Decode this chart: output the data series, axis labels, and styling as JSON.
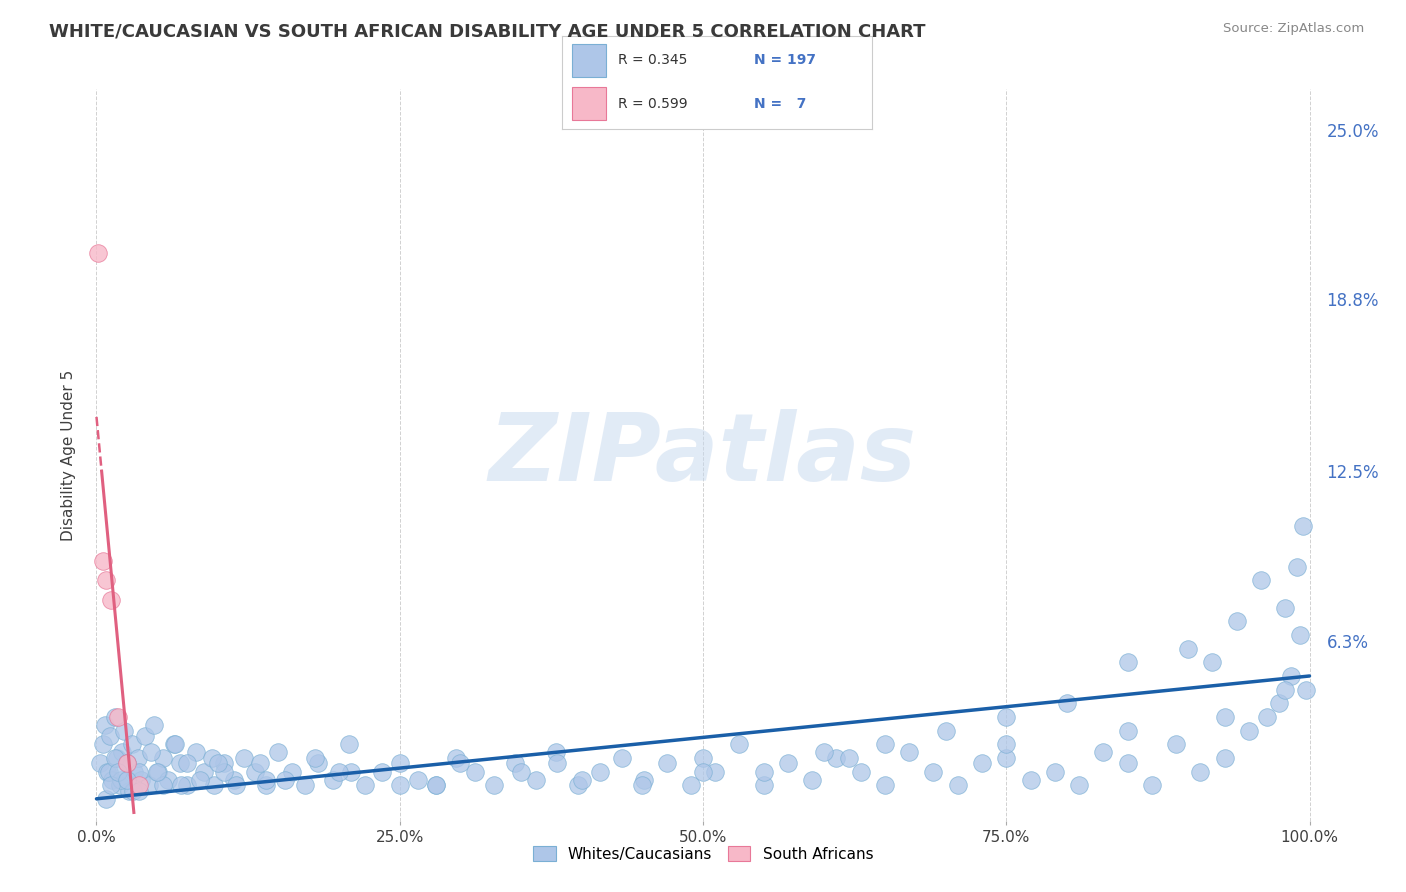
{
  "title": "WHITE/CAUCASIAN VS SOUTH AFRICAN DISABILITY AGE UNDER 5 CORRELATION CHART",
  "source": "Source: ZipAtlas.com",
  "xlabel_ticks": [
    "0.0%",
    "25.0%",
    "50.0%",
    "75.0%",
    "100.0%"
  ],
  "xlabel_vals": [
    0,
    25,
    50,
    75,
    100
  ],
  "ylabel_ticks": [
    "6.3%",
    "12.5%",
    "18.8%",
    "25.0%"
  ],
  "ylabel_vals": [
    6.3,
    12.5,
    18.8,
    25.0
  ],
  "ylabel_label": "Disability Age Under 5",
  "xlim": [
    -1,
    101
  ],
  "ylim": [
    -0.3,
    26.5
  ],
  "watermark": "ZIPatlas",
  "legend_label1": "Whites/Caucasians",
  "legend_label2": "South Africans",
  "blue_face": "#aec6e8",
  "blue_edge": "#7aafd4",
  "pink_face": "#f7b8c8",
  "pink_edge": "#e87898",
  "blue_line_color": "#1a5fa8",
  "pink_line_color": "#e06080",
  "title_color": "#3a3a3a",
  "source_color": "#888888",
  "right_tick_color": "#4472c4",
  "grid_color": "#cccccc",
  "bg_color": "#ffffff",
  "blue_trend_x0": 0,
  "blue_trend_y0": 0.5,
  "blue_trend_x1": 100,
  "blue_trend_y1": 5.0,
  "pink_solid_x0": 0,
  "pink_solid_y0": 12.5,
  "pink_solid_x1": 1.8,
  "pink_solid_y1": 0.2,
  "pink_dash_x0": 1.8,
  "pink_dash_y0": 0.2,
  "pink_dash_x1": 0,
  "pink_dash_y1": 26.5,
  "blue_pts_x": [
    0.3,
    0.5,
    0.7,
    0.9,
    1.1,
    1.3,
    1.5,
    1.7,
    1.9,
    2.1,
    2.3,
    2.5,
    2.7,
    2.9,
    3.1,
    3.4,
    3.7,
    4.0,
    4.3,
    4.7,
    5.1,
    5.5,
    5.9,
    6.4,
    6.9,
    7.5,
    8.2,
    8.9,
    9.7,
    10.5,
    11.3,
    12.2,
    13.1,
    14.0,
    15.0,
    16.1,
    17.2,
    18.3,
    19.5,
    20.8,
    22.1,
    23.5,
    25.0,
    26.5,
    28.0,
    29.6,
    31.2,
    32.8,
    34.5,
    36.2,
    37.9,
    39.7,
    41.5,
    43.3,
    45.1,
    47.0,
    49.0,
    51.0,
    53.0,
    55.0,
    57.0,
    59.0,
    61.0,
    63.0,
    65.0,
    67.0,
    69.0,
    71.0,
    73.0,
    75.0,
    77.0,
    79.0,
    81.0,
    83.0,
    85.0,
    87.0,
    89.0,
    91.0,
    93.0,
    95.0,
    96.5,
    97.5,
    98.5,
    99.2,
    99.7,
    1.0,
    1.5,
    2.0,
    2.5,
    3.0,
    3.5,
    4.5,
    5.5,
    6.5,
    7.5,
    8.5,
    9.5,
    10.5,
    11.5,
    13.5,
    15.5,
    18.0,
    21.0,
    25.0,
    30.0,
    35.0,
    40.0,
    45.0,
    50.0,
    55.0,
    60.0,
    65.0,
    70.0,
    75.0,
    80.0,
    85.0,
    90.0,
    92.0,
    94.0,
    96.0,
    98.0,
    99.0,
    99.5,
    0.8,
    1.2,
    1.8,
    2.5,
    3.5,
    5.0,
    7.0,
    10.0,
    14.0,
    20.0,
    28.0,
    38.0,
    50.0,
    62.0,
    75.0,
    85.0,
    93.0,
    98.0
  ],
  "blue_pts_y": [
    1.8,
    2.5,
    3.2,
    1.5,
    2.8,
    1.2,
    3.5,
    2.0,
    1.0,
    2.2,
    3.0,
    1.8,
    0.8,
    2.5,
    1.5,
    2.0,
    1.2,
    2.8,
    1.0,
    3.2,
    1.5,
    2.0,
    1.2,
    2.5,
    1.8,
    1.0,
    2.2,
    1.5,
    1.0,
    1.8,
    1.2,
    2.0,
    1.5,
    1.0,
    2.2,
    1.5,
    1.0,
    1.8,
    1.2,
    2.5,
    1.0,
    1.5,
    1.8,
    1.2,
    1.0,
    2.0,
    1.5,
    1.0,
    1.8,
    1.2,
    2.2,
    1.0,
    1.5,
    2.0,
    1.2,
    1.8,
    1.0,
    1.5,
    2.5,
    1.0,
    1.8,
    1.2,
    2.0,
    1.5,
    1.0,
    2.2,
    1.5,
    1.0,
    1.8,
    2.0,
    1.2,
    1.5,
    1.0,
    2.2,
    1.8,
    1.0,
    2.5,
    1.5,
    2.0,
    3.0,
    3.5,
    4.0,
    5.0,
    6.5,
    4.5,
    1.5,
    2.0,
    1.2,
    1.8,
    0.8,
    1.5,
    2.2,
    1.0,
    2.5,
    1.8,
    1.2,
    2.0,
    1.5,
    1.0,
    1.8,
    1.2,
    2.0,
    1.5,
    1.0,
    1.8,
    1.5,
    1.2,
    1.0,
    2.0,
    1.5,
    2.2,
    2.5,
    3.0,
    3.5,
    4.0,
    5.5,
    6.0,
    5.5,
    7.0,
    8.5,
    7.5,
    9.0,
    10.5,
    0.5,
    1.0,
    1.5,
    1.2,
    0.8,
    1.5,
    1.0,
    1.8,
    1.2,
    1.5,
    1.0,
    1.8,
    1.5,
    2.0,
    2.5,
    3.0,
    3.5,
    4.5
  ],
  "pink_pts_x": [
    0.15,
    0.5,
    0.8,
    1.2,
    1.8,
    2.5,
    3.5
  ],
  "pink_pts_y": [
    20.5,
    9.2,
    8.5,
    7.8,
    3.5,
    1.8,
    1.0
  ]
}
